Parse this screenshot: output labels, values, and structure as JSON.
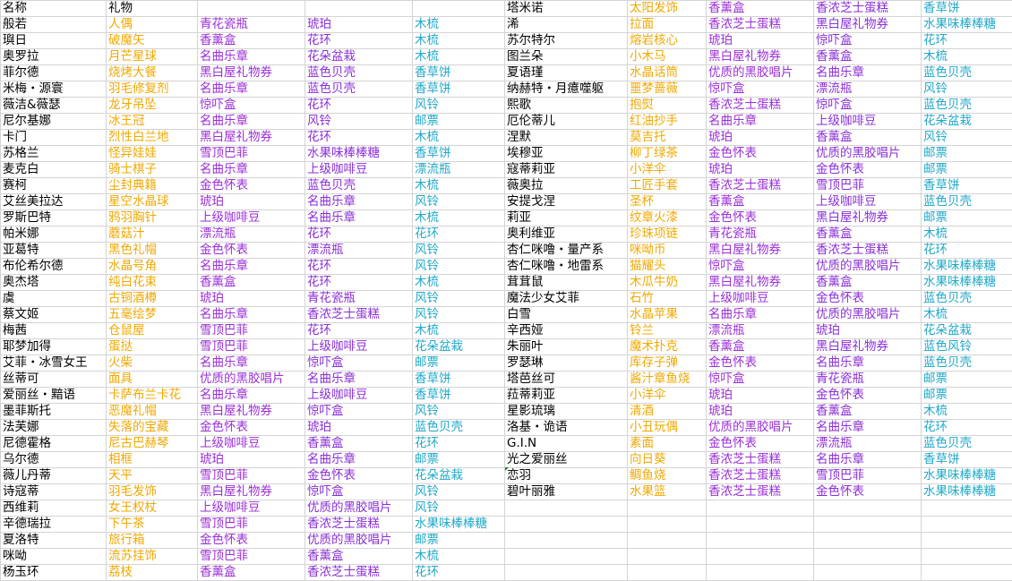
{
  "colors": {
    "name": "#000000",
    "gift1": "#f0a800",
    "gift2": "#9a2fd6",
    "gift3": "#8a2fd6",
    "gift4": "#1fa8c8",
    "grid": "#d4d4d4"
  },
  "left": [
    [
      "名称",
      "礼物",
      "",
      "",
      ""
    ],
    [
      "般若",
      "人偶",
      "青花瓷瓶",
      "琥珀",
      "木梳"
    ],
    [
      "璵日",
      "破魔矢",
      "香薰盒",
      "花环",
      "木梳"
    ],
    [
      "奥罗拉",
      "月芒星球",
      "名曲乐章",
      "花朵盆栽",
      "木梳"
    ],
    [
      "菲尔德",
      "烧烤大餐",
      "黑白屋礼物券",
      "蓝色贝壳",
      "香草饼"
    ],
    [
      "米梅・源寰",
      "羽毛修复剂",
      "名曲乐章",
      "蓝色贝壳",
      "香草饼"
    ],
    [
      "薇洁&薇瑟",
      "龙牙吊坠",
      "惊吓盒",
      "花环",
      "风铃"
    ],
    [
      "尼尔基娜",
      "冰王冠",
      "名曲乐章",
      "风铃",
      "邮票"
    ],
    [
      "卡门",
      "烈性白兰地",
      "黑白屋礼物券",
      "花环",
      "木梳"
    ],
    [
      "苏格兰",
      "怪异娃娃",
      "雪顶巴菲",
      "水果味棒棒糖",
      "香草饼"
    ],
    [
      "麦克白",
      "骑士棋子",
      "名曲乐章",
      "上级咖啡豆",
      "漂流瓶"
    ],
    [
      "赛柯",
      "尘封典籍",
      "金色怀表",
      "蓝色贝壳",
      "木梳"
    ],
    [
      "艾丝美拉达",
      "星空水晶球",
      "琥珀",
      "名曲乐章",
      "风铃"
    ],
    [
      "罗斯巴特",
      "鸦羽胸针",
      "上级咖啡豆",
      "名曲乐章",
      "木梳"
    ],
    [
      "帕米娜",
      "蘑菇汁",
      "漂流瓶",
      "花环",
      "花环"
    ],
    [
      "亚葛特",
      "黑色礼帽",
      "金色怀表",
      "漂流瓶",
      "风铃"
    ],
    [
      "布伦希尔德",
      "水晶号角",
      "名曲乐章",
      "花环",
      "风铃"
    ],
    [
      "奥杰塔",
      "纯白花束",
      "香薰盒",
      "花环",
      "木梳"
    ],
    [
      "虞",
      "古铜酒樽",
      "琥珀",
      "青花瓷瓶",
      "风铃"
    ],
    [
      "蔡文姬",
      "五毫绘梦",
      "名曲乐章",
      "香浓芝士蛋糕",
      "风铃"
    ],
    [
      "梅茜",
      "仓鼠屋",
      "雪顶巴菲",
      "花环",
      "木梳"
    ],
    [
      "耶梦加得",
      "蛋挞",
      "雪顶巴菲",
      "上级咖啡豆",
      "花朵盆栽"
    ],
    [
      "艾菲・冰雪女王",
      "火柴",
      "名曲乐章",
      "惊吓盒",
      "邮票"
    ],
    [
      "丝蒂可",
      "面具",
      "优质的黑胶唱片",
      "名曲乐章",
      "香草饼"
    ],
    [
      "爱丽丝・黯语",
      "卡萨布兰卡花",
      "名曲乐章",
      "上级咖啡豆",
      "香草饼"
    ],
    [
      "墨菲斯托",
      "恶魔礼帽",
      "黑白屋礼物券",
      "惊吓盒",
      "风铃"
    ],
    [
      "法芙娜",
      "失落的宝藏",
      "金色怀表",
      "琥珀",
      "蓝色贝壳"
    ],
    [
      "尼德霍格",
      "尼古巴赫琴",
      "上级咖啡豆",
      "香薰盒",
      "花环"
    ],
    [
      "乌尔德",
      "相框",
      "琥珀",
      "名曲乐章",
      "邮票"
    ],
    [
      "薇儿丹蒂",
      "天平",
      "雪顶巴菲",
      "金色怀表",
      "花朵盆栽"
    ],
    [
      "诗寇蒂",
      "羽毛发饰",
      "黑白屋礼物券",
      "惊吓盒",
      "风铃"
    ],
    [
      "西维莉",
      "女王权杖",
      "上级咖啡豆",
      "优质的黑胶唱片",
      "风铃"
    ],
    [
      "辛德瑞拉",
      "下午茶",
      "雪顶巴菲",
      "香浓芝士蛋糕",
      "水果味棒棒糖"
    ],
    [
      "夏洛特",
      "旅行箱",
      "金色怀表",
      "优质的黑胶唱片",
      "邮票"
    ],
    [
      "咪呦",
      "流苏挂饰",
      "雪顶巴菲",
      "香薰盒",
      "木梳"
    ],
    [
      "杨玉环",
      "荔枝",
      "香薰盒",
      "香浓芝士蛋糕",
      "花环"
    ]
  ],
  "right": [
    [
      "塔米诺",
      "太阳发饰",
      "香薰盒",
      "香浓芝士蛋糕",
      "香草饼"
    ],
    [
      "浠",
      "拉面",
      "香浓芝士蛋糕",
      "黑白屋礼物券",
      "水果味棒棒糖"
    ],
    [
      "苏尔特尔",
      "熔岩核心",
      "琥珀",
      "惊吓盒",
      "花环"
    ],
    [
      "图兰朵",
      "小木马",
      "黑白屋礼物券",
      "香薰盒",
      "木梳"
    ],
    [
      "夏语瑾",
      "水晶话筒",
      "优质的黑胶唱片",
      "名曲乐章",
      "蓝色贝壳"
    ],
    [
      "纳赫特・月癔噬躯",
      "噩梦蔷薇",
      "惊吓盒",
      "漂流瓶",
      "风铃"
    ],
    [
      "熙歌",
      "抱熨",
      "香浓芝士蛋糕",
      "惊吓盒",
      "蓝色贝壳"
    ],
    [
      "厄伦蒂儿",
      "红油抄手",
      "名曲乐章",
      "上级咖啡豆",
      "花朵盆栽"
    ],
    [
      "涅默",
      "莫吉托",
      "琥珀",
      "香薰盒",
      "风铃"
    ],
    [
      "埃穆亚",
      "柳丁绿茶",
      "金色怀表",
      "优质的黑胶唱片",
      "邮票"
    ],
    [
      "寇蒂莉亚",
      "小洋伞",
      "琥珀",
      "金色怀表",
      "邮票"
    ],
    [
      "薇奥拉",
      "工匠手套",
      "香浓芝士蛋糕",
      "雪顶巴菲",
      "香草饼"
    ],
    [
      "安提戈涅",
      "圣杯",
      "香薰盒",
      "上级咖啡豆",
      "蓝色贝壳"
    ],
    [
      "莉亚",
      "纹章火漆",
      "金色怀表",
      "黑白屋礼物券",
      "邮票"
    ],
    [
      "奥利维亚",
      "珍珠项链",
      "青花瓷瓶",
      "香薰盒",
      "木梳"
    ],
    [
      "杏仁咪噜・量产系",
      "咪呦币",
      "黑白屋礼物券",
      "香浓芝士蛋糕",
      "花环"
    ],
    [
      "杏仁咪噜・地雷系",
      "猫耀头",
      "惊吓盒",
      "优质的黑胶唱片",
      "水果味棒棒糖"
    ],
    [
      "茸茸鼠",
      "木瓜牛奶",
      "黑白屋礼物券",
      "香薰盒",
      "水果味棒棒糖"
    ],
    [
      "魔法少女艾菲",
      "石竹",
      "上级咖啡豆",
      "金色怀表",
      "蓝色贝壳"
    ],
    [
      "白雪",
      "水晶苹果",
      "名曲乐章",
      "优质的黑胶唱片",
      "木梳"
    ],
    [
      "辛西娅",
      "铃兰",
      "漂流瓶",
      "琥珀",
      "花朵盆栽"
    ],
    [
      "朱丽叶",
      "魔术扑克",
      "香薰盒",
      "黑白屋礼物券",
      "蓝色风铃"
    ],
    [
      "罗瑟琳",
      "库存子弹",
      "金色怀表",
      "名曲乐章",
      "蓝色贝壳"
    ],
    [
      "塔芭丝可",
      "酱汁章鱼烧",
      "惊吓盒",
      "青花瓷瓶",
      "邮票"
    ],
    [
      "菈蒂莉亚",
      "小洋伞",
      "琥珀",
      "金色怀表",
      "邮票"
    ],
    [
      "星影琉璃",
      "清酒",
      "琥珀",
      "香薰盒",
      "木梳"
    ],
    [
      "洛基・诡语",
      "小丑玩偶",
      "优质的黑胶唱片",
      "名曲乐章",
      "花环"
    ],
    [
      "G.I.N",
      "素面",
      "金色怀表",
      "漂流瓶",
      "蓝色贝壳"
    ],
    [
      "光之爱丽丝",
      "向日葵",
      "香浓芝士蛋糕",
      "名曲乐章",
      "香草饼"
    ],
    [
      "恋羽",
      "鲷鱼烧",
      "香浓芝士蛋糕",
      "雪顶巴菲",
      "水果味棒棒糖"
    ],
    [
      "碧叶丽雅",
      "水果篮",
      "香浓芝士蛋糕",
      "金色怀表",
      "水果味棒棒糖"
    ],
    [
      "",
      "",
      "",
      "",
      ""
    ],
    [
      "",
      "",
      "",
      "",
      ""
    ],
    [
      "",
      "",
      "",
      "",
      ""
    ],
    [
      "",
      "",
      "",
      "",
      ""
    ],
    [
      "",
      "",
      "",
      "",
      ""
    ]
  ]
}
